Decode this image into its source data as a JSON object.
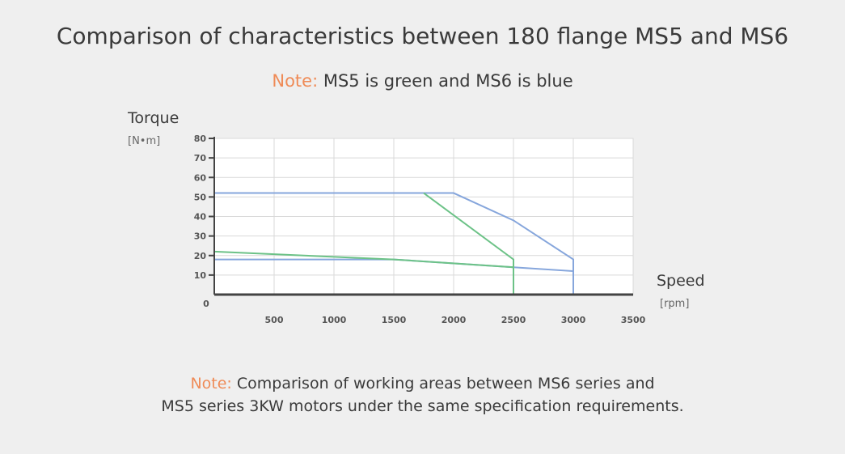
{
  "page": {
    "title": "Comparison of characteristics between 180 flange MS5 and MS6",
    "note_top_label": "Note:",
    "note_top_text": " MS5 is green and MS6 is blue",
    "footer_label": "Note:",
    "footer_line1": " Comparison of working areas between MS6 series and",
    "footer_line2": "MS5 series 3KW motors under the same specification requirements."
  },
  "chart_data": {
    "type": "line",
    "ylabel": "Torque",
    "yunit": "[N•m]",
    "xlabel": "Speed",
    "xunit": "[rpm]",
    "xlim": [
      0,
      3500
    ],
    "ylim": [
      0,
      80
    ],
    "x_ticks": [
      500,
      1000,
      1500,
      2000,
      2500,
      3000,
      3500
    ],
    "y_ticks": [
      10,
      20,
      30,
      40,
      50,
      60,
      70,
      80
    ],
    "origin_label": "0",
    "grid": true,
    "colors": {
      "MS5": "#6cc287",
      "MS6": "#86a6dc",
      "MS5_fill": "#b8dfc4",
      "MS6_fill": "#cfdcef",
      "note": "#ef8b57"
    },
    "series": [
      {
        "key": "MS6",
        "peak": [
          [
            0,
            52
          ],
          [
            2000,
            52
          ],
          [
            2500,
            38
          ],
          [
            3000,
            18
          ],
          [
            3000,
            0
          ]
        ],
        "continuous": [
          [
            0,
            18
          ],
          [
            1500,
            18
          ],
          [
            2500,
            14
          ],
          [
            3000,
            12
          ],
          [
            3000,
            0
          ]
        ]
      },
      {
        "key": "MS5",
        "peak": [
          [
            1750,
            52
          ],
          [
            2500,
            18
          ],
          [
            2500,
            0
          ]
        ],
        "continuous": [
          [
            0,
            22
          ],
          [
            1500,
            18
          ],
          [
            2500,
            14
          ],
          [
            2500,
            0
          ]
        ]
      }
    ]
  }
}
